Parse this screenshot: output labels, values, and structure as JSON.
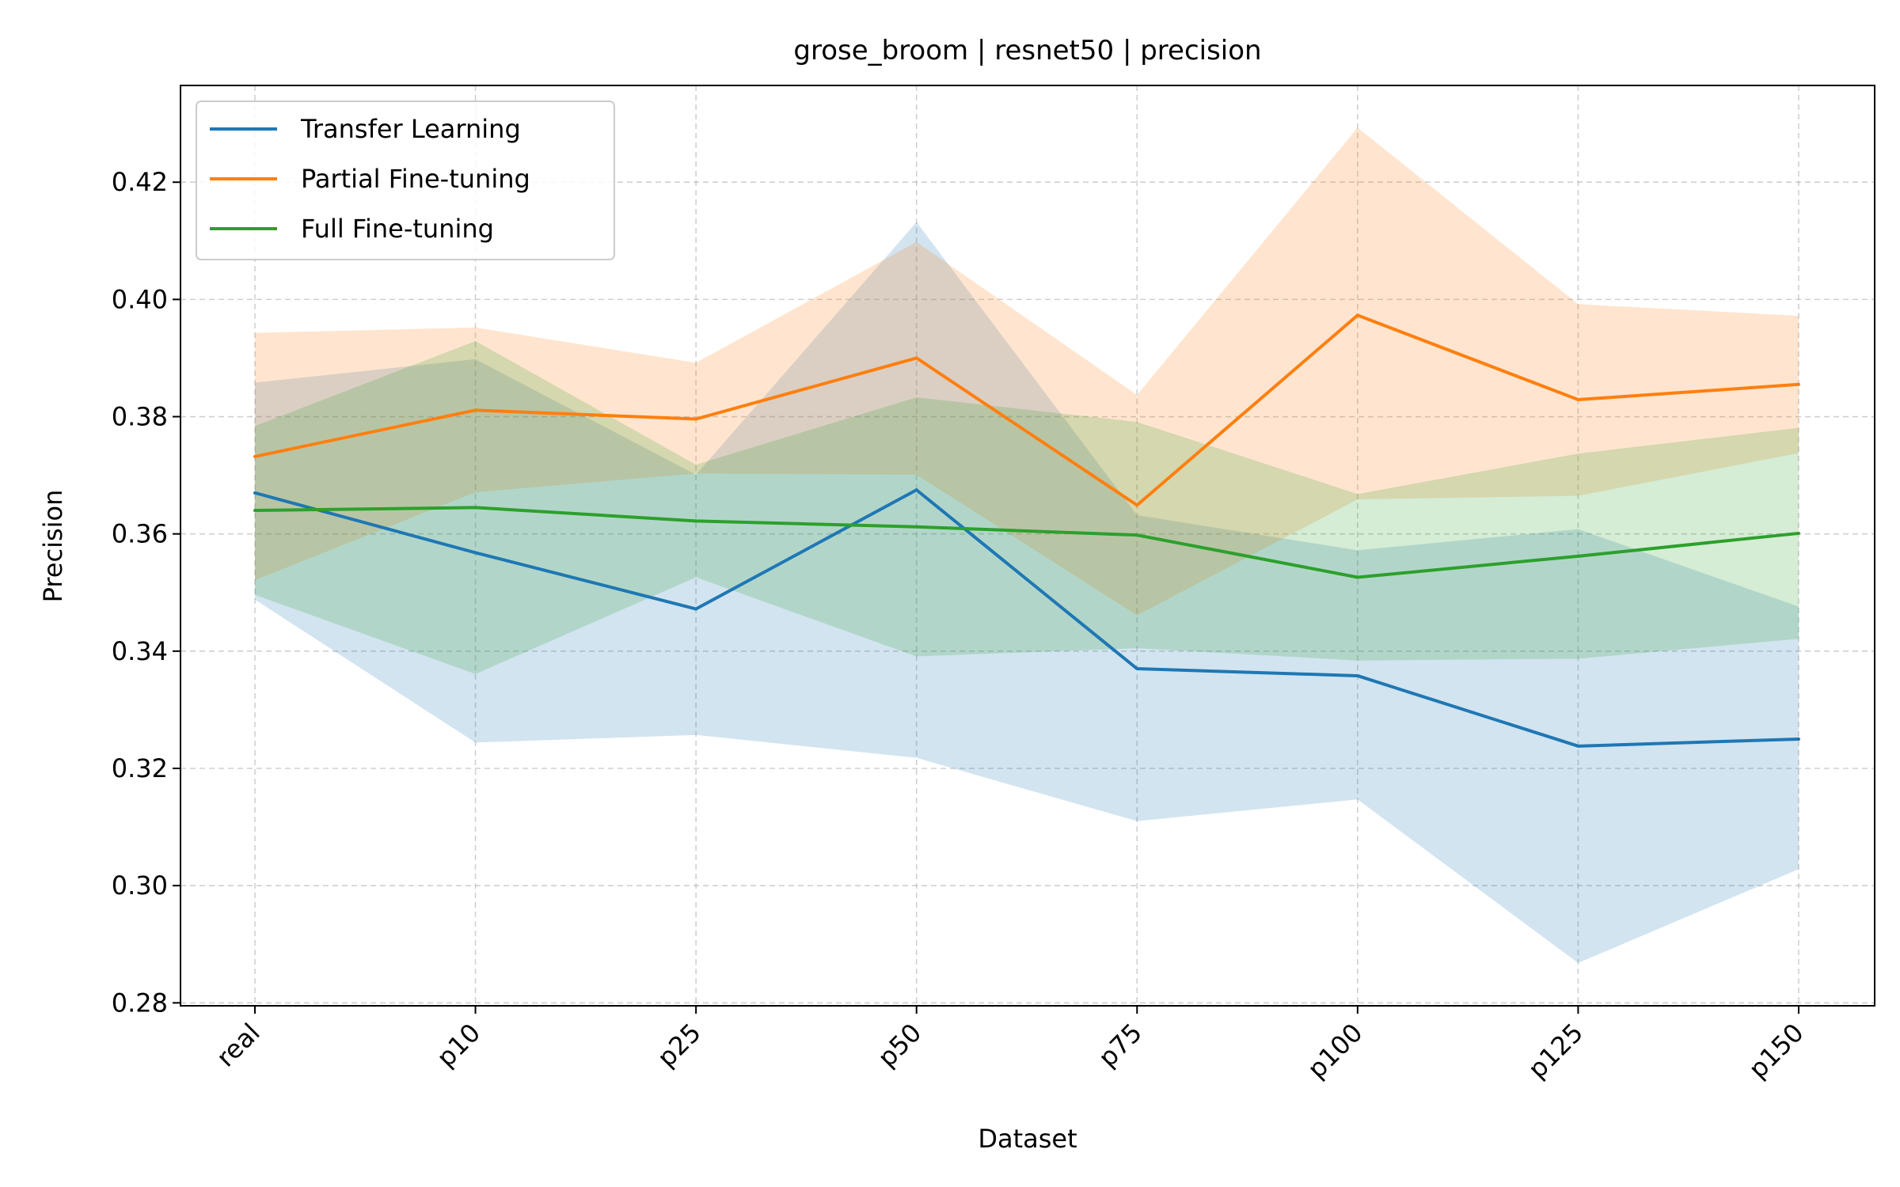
{
  "chart_data": {
    "type": "line",
    "title": "grose_broom | resnet50 | precision",
    "xlabel": "Dataset",
    "ylabel": "Precision",
    "categories": [
      "real",
      "p10",
      "p25",
      "p50",
      "p75",
      "p100",
      "p125",
      "p150"
    ],
    "ylim": [
      0.2795,
      0.4365
    ],
    "yticks": [
      0.28,
      0.3,
      0.32,
      0.34,
      0.36,
      0.38,
      0.4,
      0.42
    ],
    "ytick_labels": [
      "0.28",
      "0.30",
      "0.32",
      "0.34",
      "0.36",
      "0.38",
      "0.40",
      "0.42"
    ],
    "grid": true,
    "legend_position": "top-left",
    "series": [
      {
        "name": "Transfer Learning",
        "color": "#1f77b4",
        "values": [
          0.367,
          0.3568,
          0.3472,
          0.3675,
          0.337,
          0.3358,
          0.3238,
          0.325
        ],
        "lower": [
          0.3488,
          0.3244,
          0.3257,
          0.3218,
          0.311,
          0.3147,
          0.2868,
          0.3028
        ],
        "upper": [
          0.3858,
          0.3898,
          0.3701,
          0.4132,
          0.3632,
          0.3572,
          0.3608,
          0.3476
        ]
      },
      {
        "name": "Partial Fine-tuning",
        "color": "#ff7f0e",
        "values": [
          0.3732,
          0.3811,
          0.3796,
          0.39,
          0.3649,
          0.3973,
          0.3829,
          0.3855
        ],
        "lower": [
          0.3521,
          0.3671,
          0.3703,
          0.3701,
          0.3461,
          0.3659,
          0.3665,
          0.3738
        ],
        "upper": [
          0.3943,
          0.3952,
          0.3892,
          0.4098,
          0.3837,
          0.4293,
          0.3992,
          0.3972
        ]
      },
      {
        "name": "Full Fine-tuning",
        "color": "#2ca02c",
        "values": [
          0.364,
          0.3645,
          0.3622,
          0.3612,
          0.3598,
          0.3526,
          0.3562,
          0.3601
        ],
        "lower": [
          0.3496,
          0.3361,
          0.3526,
          0.3391,
          0.3405,
          0.3384,
          0.3387,
          0.3421
        ],
        "upper": [
          0.3784,
          0.3929,
          0.3718,
          0.3833,
          0.3791,
          0.3668,
          0.3737,
          0.3781
        ]
      }
    ]
  }
}
